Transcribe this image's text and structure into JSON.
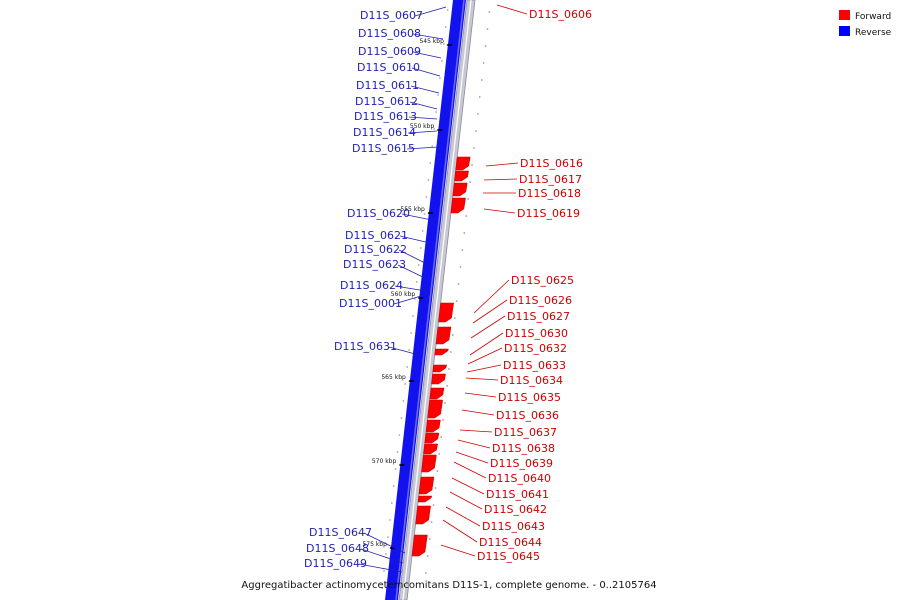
{
  "legend": [
    {
      "label": "Forward",
      "color": "#ff0000"
    },
    {
      "label": "Reverse",
      "color": "#0000ff"
    }
  ],
  "caption": "Aggregatibacter actinomycetemcomitans D11S-1, complete genome. - 0..2105764",
  "colors": {
    "forward": "#ff0000",
    "reverse": "#1212ee",
    "backbone": "#a8a8b8"
  },
  "ticks": [
    "545 kbp",
    "550 kbp",
    "555 kbp",
    "560 kbp",
    "565 kbp",
    "570 kbp",
    "575 kbp"
  ],
  "reverse_genes": [
    "D11S_0607",
    "D11S_0608",
    "D11S_0609",
    "D11S_0610",
    "D11S_0611",
    "D11S_0612",
    "D11S_0613",
    "D11S_0614",
    "D11S_0615",
    "D11S_0620",
    "D11S_0621",
    "D11S_0622",
    "D11S_0623",
    "D11S_0624",
    "D11S_0001",
    "D11S_0631",
    "D11S_0647",
    "D11S_0648",
    "D11S_0649"
  ],
  "forward_genes": [
    "D11S_0606",
    "D11S_0616",
    "D11S_0617",
    "D11S_0618",
    "D11S_0619",
    "D11S_0625",
    "D11S_0626",
    "D11S_0627",
    "D11S_0630",
    "D11S_0632",
    "D11S_0633",
    "D11S_0634",
    "D11S_0635",
    "D11S_0636",
    "D11S_0637",
    "D11S_0638",
    "D11S_0639",
    "D11S_0640",
    "D11S_0641",
    "D11S_0642",
    "D11S_0643",
    "D11S_0644",
    "D11S_0645"
  ]
}
